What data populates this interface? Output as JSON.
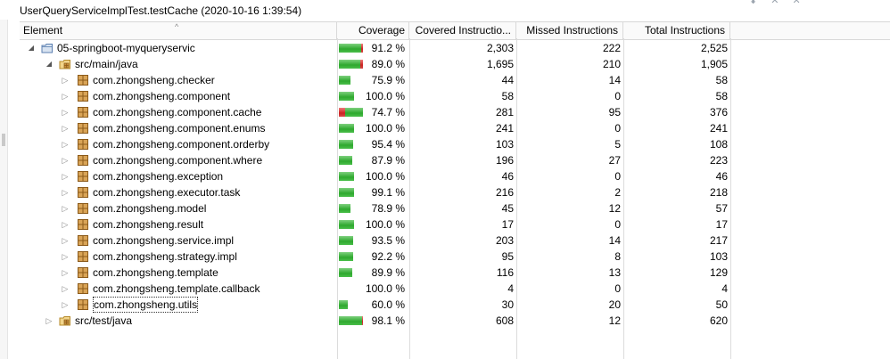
{
  "title": "UserQueryServiceImplTest.testCache (2020-10-16 1:39:54)",
  "columns": {
    "element": "Element",
    "coverage": "Coverage",
    "covered": "Covered Instructio...",
    "missed": "Missed Instructions",
    "total": "Total Instructions"
  },
  "colors": {
    "covered": "#3cb043",
    "missed": "#d13232"
  },
  "rows": [
    {
      "label": "05-springboot-myqueryservic",
      "icon": "project-folder-icon",
      "toggle": "expanded",
      "level": 0,
      "coverage": "91.2 %",
      "covered": "2,303",
      "missed": "222",
      "total": "2,525",
      "ratio": 0.912
    },
    {
      "label": "src/main/java",
      "icon": "source-folder-icon",
      "toggle": "expanded",
      "level": 1,
      "coverage": "89.0 %",
      "covered": "1,695",
      "missed": "210",
      "total": "1,905",
      "ratio": 0.89
    },
    {
      "label": "com.zhongsheng.checker",
      "icon": "package-icon",
      "toggle": "collapsed",
      "level": 2,
      "coverage": "75.9 %",
      "covered": "44",
      "missed": "14",
      "total": "58",
      "ratio": 0.759
    },
    {
      "label": "com.zhongsheng.component",
      "icon": "package-icon",
      "toggle": "collapsed",
      "level": 2,
      "coverage": "100.0 %",
      "covered": "58",
      "missed": "0",
      "total": "58",
      "ratio": 1.0
    },
    {
      "label": "com.zhongsheng.component.cache",
      "icon": "package-icon",
      "toggle": "collapsed",
      "level": 2,
      "coverage": "74.7 %",
      "covered": "281",
      "missed": "95",
      "total": "376",
      "ratio": 0.747
    },
    {
      "label": "com.zhongsheng.component.enums",
      "icon": "package-icon",
      "toggle": "collapsed",
      "level": 2,
      "coverage": "100.0 %",
      "covered": "241",
      "missed": "0",
      "total": "241",
      "ratio": 1.0
    },
    {
      "label": "com.zhongsheng.component.orderby",
      "icon": "package-icon",
      "toggle": "collapsed",
      "level": 2,
      "coverage": "95.4 %",
      "covered": "103",
      "missed": "5",
      "total": "108",
      "ratio": 0.954
    },
    {
      "label": "com.zhongsheng.component.where",
      "icon": "package-icon",
      "toggle": "collapsed",
      "level": 2,
      "coverage": "87.9 %",
      "covered": "196",
      "missed": "27",
      "total": "223",
      "ratio": 0.879
    },
    {
      "label": "com.zhongsheng.exception",
      "icon": "package-icon",
      "toggle": "collapsed",
      "level": 2,
      "coverage": "100.0 %",
      "covered": "46",
      "missed": "0",
      "total": "46",
      "ratio": 1.0
    },
    {
      "label": "com.zhongsheng.executor.task",
      "icon": "package-icon",
      "toggle": "collapsed",
      "level": 2,
      "coverage": "99.1 %",
      "covered": "216",
      "missed": "2",
      "total": "218",
      "ratio": 0.991
    },
    {
      "label": "com.zhongsheng.model",
      "icon": "package-icon",
      "toggle": "collapsed",
      "level": 2,
      "coverage": "78.9 %",
      "covered": "45",
      "missed": "12",
      "total": "57",
      "ratio": 0.789
    },
    {
      "label": "com.zhongsheng.result",
      "icon": "package-icon",
      "toggle": "collapsed",
      "level": 2,
      "coverage": "100.0 %",
      "covered": "17",
      "missed": "0",
      "total": "17",
      "ratio": 1.0
    },
    {
      "label": "com.zhongsheng.service.impl",
      "icon": "package-icon",
      "toggle": "collapsed",
      "level": 2,
      "coverage": "93.5 %",
      "covered": "203",
      "missed": "14",
      "total": "217",
      "ratio": 0.935
    },
    {
      "label": "com.zhongsheng.strategy.impl",
      "icon": "package-icon",
      "toggle": "collapsed",
      "level": 2,
      "coverage": "92.2 %",
      "covered": "95",
      "missed": "8",
      "total": "103",
      "ratio": 0.922
    },
    {
      "label": "com.zhongsheng.template",
      "icon": "package-icon",
      "toggle": "collapsed",
      "level": 2,
      "coverage": "89.9 %",
      "covered": "116",
      "missed": "13",
      "total": "129",
      "ratio": 0.899
    },
    {
      "label": "com.zhongsheng.template.callback",
      "icon": "package-icon",
      "toggle": "collapsed",
      "level": 2,
      "coverage": "100.0 %",
      "covered": "4",
      "missed": "0",
      "total": "4",
      "ratio": 1.0
    },
    {
      "label": "com.zhongsheng.utils",
      "icon": "package-icon",
      "toggle": "collapsed",
      "level": 2,
      "coverage": "60.0 %",
      "covered": "30",
      "missed": "20",
      "total": "50",
      "ratio": 0.6,
      "focused": true
    },
    {
      "label": "src/test/java",
      "icon": "source-folder-icon",
      "toggle": "collapsed",
      "level": 1,
      "coverage": "98.1 %",
      "covered": "608",
      "missed": "12",
      "total": "620",
      "ratio": 0.981
    }
  ]
}
